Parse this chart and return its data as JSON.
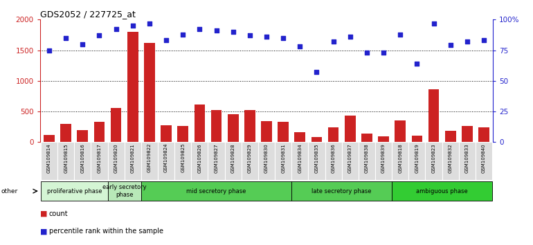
{
  "title": "GDS2052 / 227725_at",
  "samples": [
    "GSM109814",
    "GSM109815",
    "GSM109816",
    "GSM109817",
    "GSM109820",
    "GSM109821",
    "GSM109822",
    "GSM109824",
    "GSM109825",
    "GSM109826",
    "GSM109827",
    "GSM109828",
    "GSM109829",
    "GSM109830",
    "GSM109831",
    "GSM109834",
    "GSM109835",
    "GSM109836",
    "GSM109837",
    "GSM109838",
    "GSM109839",
    "GSM109818",
    "GSM109819",
    "GSM109823",
    "GSM109832",
    "GSM109833",
    "GSM109840"
  ],
  "counts": [
    120,
    300,
    200,
    330,
    560,
    1800,
    1620,
    270,
    260,
    610,
    520,
    460,
    520,
    340,
    335,
    165,
    80,
    240,
    430,
    140,
    95,
    350,
    110,
    860,
    180,
    260,
    245
  ],
  "percentiles_pct": [
    75,
    85,
    80,
    87,
    92,
    95,
    97,
    83,
    88,
    92,
    91,
    90,
    87,
    86,
    85,
    78,
    57,
    82,
    86,
    73,
    73,
    88,
    64,
    97,
    79,
    82,
    83
  ],
  "phases": [
    {
      "label": "proliferative phase",
      "start": 0,
      "end": 4,
      "color": "#d4f5d4"
    },
    {
      "label": "early secretory\nphase",
      "start": 4,
      "end": 6,
      "color": "#b8e8b8"
    },
    {
      "label": "mid secretory phase",
      "start": 6,
      "end": 15,
      "color": "#55cc55"
    },
    {
      "label": "late secretory phase",
      "start": 15,
      "end": 21,
      "color": "#55cc55"
    },
    {
      "label": "ambiguous phase",
      "start": 21,
      "end": 27,
      "color": "#33cc33"
    }
  ],
  "bar_color": "#cc2222",
  "dot_color": "#2222cc",
  "ylim_left": [
    0,
    2000
  ],
  "ylim_right": [
    0,
    100
  ],
  "yticks_left": [
    0,
    500,
    1000,
    1500,
    2000
  ],
  "yticks_right": [
    0,
    25,
    50,
    75,
    100
  ],
  "tick_bg": "#dddddd",
  "bg_color": "#ffffff"
}
